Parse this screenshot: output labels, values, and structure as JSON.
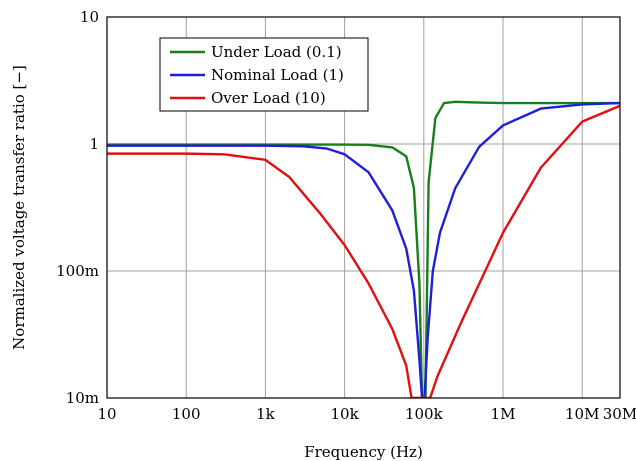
{
  "chart_data": {
    "type": "line",
    "title": "",
    "xlabel": "Frequency (Hz)",
    "ylabel": "Normalized voltage transfer ratio [−]",
    "xscale": "log",
    "yscale": "log",
    "xlim": [
      10,
      30000000
    ],
    "ylim": [
      0.01,
      10
    ],
    "x_ticks": [
      {
        "value": 10,
        "label": "10"
      },
      {
        "value": 100,
        "label": "100"
      },
      {
        "value": 1000,
        "label": "1k"
      },
      {
        "value": 10000,
        "label": "10k"
      },
      {
        "value": 100000,
        "label": "100k"
      },
      {
        "value": 1000000,
        "label": "1M"
      },
      {
        "value": 10000000,
        "label": "10M"
      },
      {
        "value": 30000000,
        "label": "30M"
      }
    ],
    "y_ticks": [
      {
        "value": 0.01,
        "label": "10m"
      },
      {
        "value": 0.1,
        "label": "100m"
      },
      {
        "value": 1,
        "label": "1"
      },
      {
        "value": 10,
        "label": "10"
      }
    ],
    "grid": true,
    "legend_position": "top-left",
    "series": [
      {
        "name": "Under Load (0.1)",
        "color": "#1a7f1a",
        "points": [
          [
            10,
            0.99
          ],
          [
            1000,
            0.99
          ],
          [
            10000,
            0.99
          ],
          [
            20000,
            0.985
          ],
          [
            40000,
            0.94
          ],
          [
            60000,
            0.8
          ],
          [
            75000,
            0.45
          ],
          [
            88000,
            0.08
          ],
          [
            95000,
            0.01
          ],
          [
            105000,
            0.01
          ],
          [
            115000,
            0.5
          ],
          [
            140000,
            1.6
          ],
          [
            180000,
            2.1
          ],
          [
            250000,
            2.15
          ],
          [
            500000,
            2.12
          ],
          [
            1000000,
            2.1
          ],
          [
            10000000,
            2.1
          ],
          [
            30000000,
            2.1
          ]
        ]
      },
      {
        "name": "Nominal Load (1)",
        "color": "#1f1fd6",
        "points": [
          [
            10,
            0.97
          ],
          [
            100,
            0.97
          ],
          [
            1000,
            0.97
          ],
          [
            3000,
            0.96
          ],
          [
            6000,
            0.92
          ],
          [
            10000,
            0.83
          ],
          [
            20000,
            0.6
          ],
          [
            40000,
            0.3
          ],
          [
            60000,
            0.15
          ],
          [
            75000,
            0.07
          ],
          [
            88000,
            0.02
          ],
          [
            95000,
            0.01
          ],
          [
            102000,
            0.01
          ],
          [
            112000,
            0.03
          ],
          [
            130000,
            0.1
          ],
          [
            160000,
            0.2
          ],
          [
            250000,
            0.45
          ],
          [
            500000,
            0.95
          ],
          [
            1000000,
            1.4
          ],
          [
            3000000,
            1.9
          ],
          [
            10000000,
            2.05
          ],
          [
            30000000,
            2.1
          ]
        ]
      },
      {
        "name": "Over Load (10)",
        "color": "#e01010",
        "points": [
          [
            10,
            0.84
          ],
          [
            100,
            0.84
          ],
          [
            300,
            0.83
          ],
          [
            1000,
            0.75
          ],
          [
            2000,
            0.55
          ],
          [
            5000,
            0.28
          ],
          [
            10000,
            0.16
          ],
          [
            20000,
            0.08
          ],
          [
            40000,
            0.035
          ],
          [
            60000,
            0.018
          ],
          [
            70000,
            0.01
          ],
          [
            120000,
            0.01
          ],
          [
            150000,
            0.015
          ],
          [
            300000,
            0.04
          ],
          [
            1000000,
            0.2
          ],
          [
            3000000,
            0.65
          ],
          [
            10000000,
            1.5
          ],
          [
            30000000,
            2.0
          ]
        ]
      }
    ]
  }
}
